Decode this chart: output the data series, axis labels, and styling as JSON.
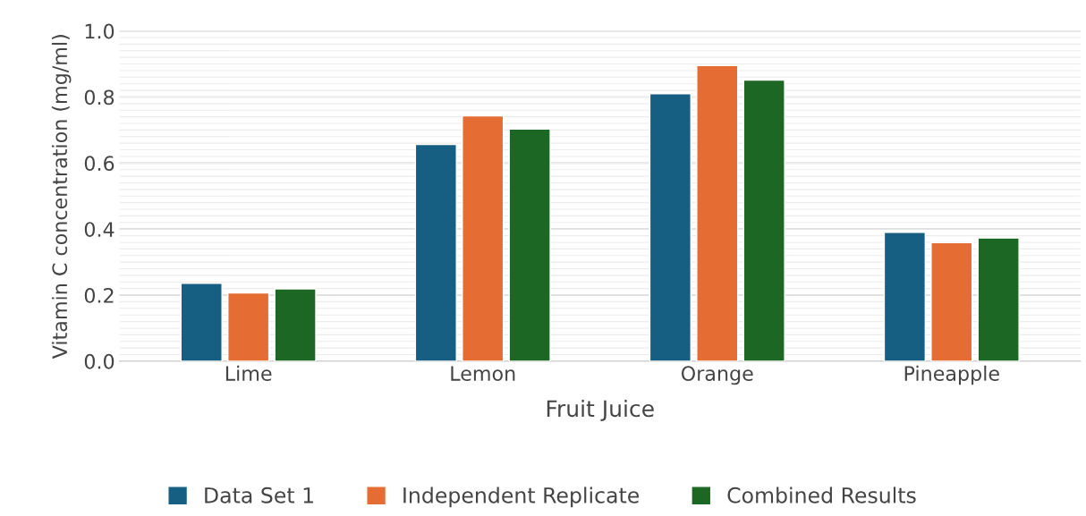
{
  "chart_data": {
    "type": "bar",
    "xlabel": "Fruit Juice",
    "ylabel": "Vitamin C concentration (mg/ml)",
    "categories": [
      "Lime",
      "Lemon",
      "Orange",
      "Pineapple"
    ],
    "series": [
      {
        "name": "Data Set 1",
        "color": "#175e83",
        "values": [
          0.236,
          0.656,
          0.81,
          0.39
        ]
      },
      {
        "name": "Independent Replicate",
        "color": "#e56d33",
        "values": [
          0.207,
          0.743,
          0.895,
          0.359
        ]
      },
      {
        "name": "Combined Results",
        "color": "#1b6723",
        "values": [
          0.219,
          0.703,
          0.851,
          0.373
        ]
      }
    ],
    "ylim": [
      0,
      1.0
    ],
    "yticks": [
      {
        "value": 0,
        "label": "0.0"
      },
      {
        "value": 0.2,
        "label": "0.2"
      },
      {
        "value": 0.4,
        "label": "0.4"
      },
      {
        "value": 0.6,
        "label": "0.6"
      },
      {
        "value": 0.8,
        "label": "0.8"
      },
      {
        "value": 1.0,
        "label": "1.0"
      }
    ],
    "grid": "y",
    "legend": "bottom"
  }
}
